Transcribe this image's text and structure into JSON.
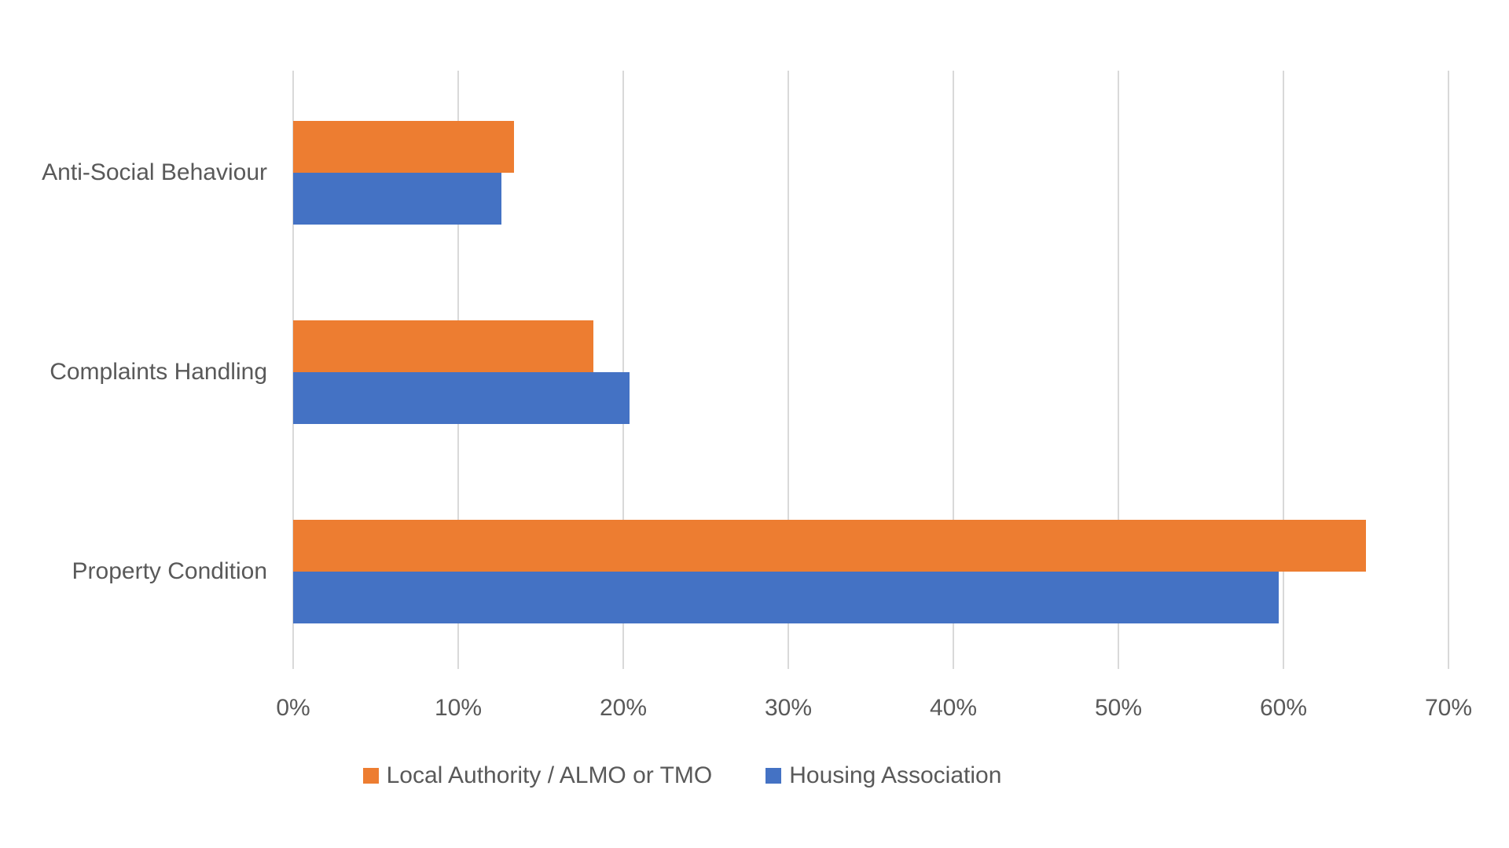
{
  "chart_data": {
    "type": "bar",
    "orientation": "horizontal",
    "title": "",
    "categories": [
      "Anti-Social Behaviour",
      "Complaints Handling",
      "Property Condition"
    ],
    "series": [
      {
        "name": "Local Authority / ALMO or TMO",
        "color": "#ED7D31",
        "values": [
          13.4,
          18.2,
          65.0
        ]
      },
      {
        "name": "Housing Association",
        "color": "#4472C4",
        "values": [
          12.6,
          20.4,
          59.7
        ]
      }
    ],
    "x_axis": {
      "unit": "%",
      "min": 0,
      "max": 70,
      "tick_step": 10,
      "ticks": [
        "0%",
        "10%",
        "20%",
        "30%",
        "40%",
        "50%",
        "60%",
        "70%"
      ]
    },
    "y_axis": {
      "label": ""
    },
    "grid": true,
    "gridline_color": "#D9D9D9",
    "text_color": "#595959",
    "background_color": "#FFFFFF",
    "legend_position": "bottom"
  }
}
